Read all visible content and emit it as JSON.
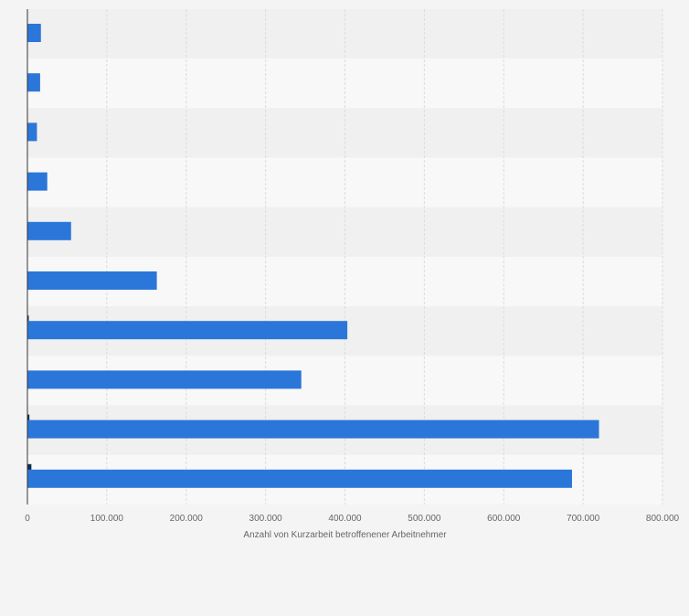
{
  "chart_data": {
    "type": "bar",
    "orientation": "horizontal",
    "title": "",
    "xlabel": "Anzahl von Kurzarbeit betroffenener Arbeitnehmer",
    "ylabel": "",
    "xlim": [
      0,
      800000
    ],
    "x_ticks": [
      0,
      100000,
      200000,
      300000,
      400000,
      500000,
      600000,
      700000,
      800000
    ],
    "x_tick_labels": [
      "0",
      "100.000",
      "200.000",
      "300.000",
      "400.000",
      "500.000",
      "600.000",
      "700.000",
      "800.000"
    ],
    "grid": "vertical dashed",
    "legend": "none",
    "category_count": 10,
    "series": [
      {
        "color": "#0d2f4f",
        "values": [
          0,
          0,
          0,
          0,
          0,
          0,
          1500,
          0,
          2500,
          5000
        ]
      },
      {
        "color": "#2b76d9",
        "values": [
          17000,
          16000,
          12000,
          25000,
          55000,
          163000,
          403000,
          345000,
          720000,
          686000
        ]
      }
    ]
  }
}
